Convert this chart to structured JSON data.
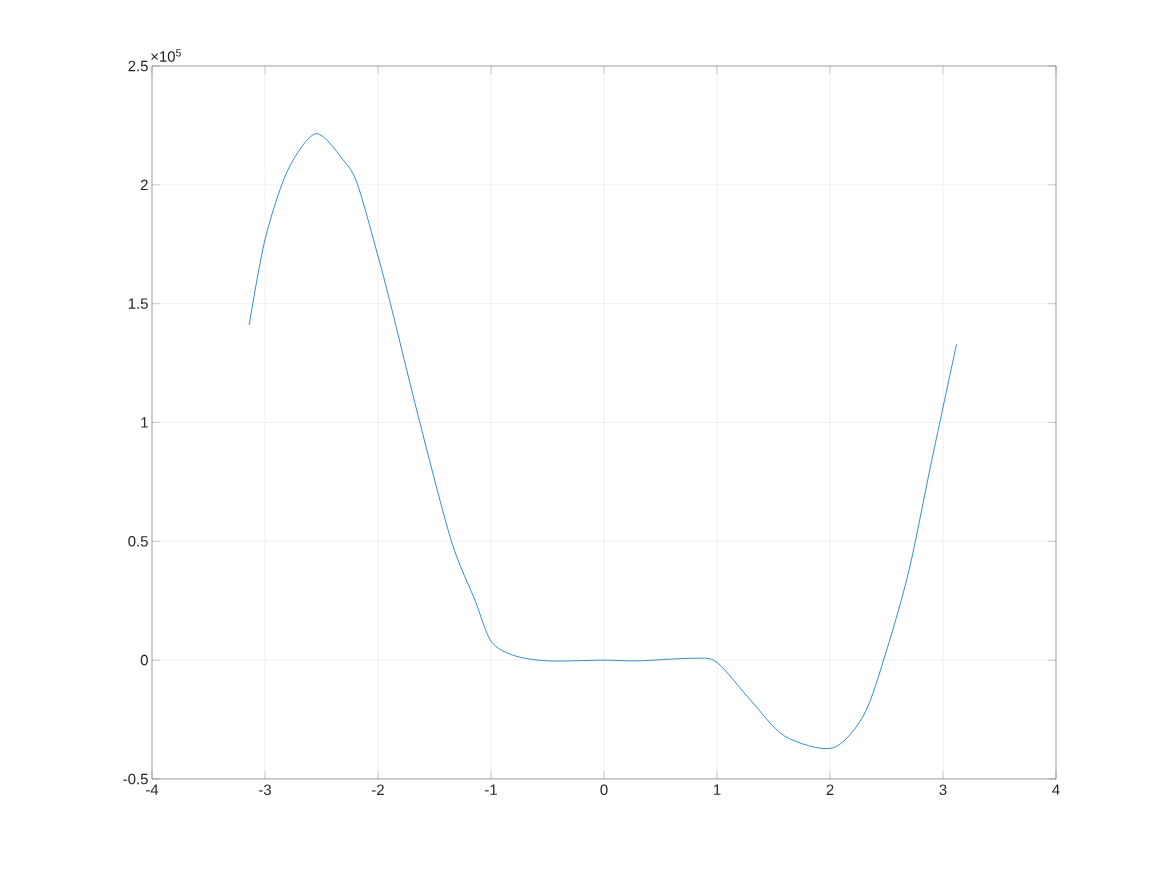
{
  "chart_data": {
    "type": "line",
    "x": [
      -3.14,
      -3.0,
      -2.8,
      -2.55,
      -2.3,
      -2.18,
      -2.0,
      -1.89,
      -1.63,
      -1.35,
      -1.14,
      -1.0,
      -0.8,
      -0.5,
      0.0,
      0.3,
      0.8,
      1.0,
      1.3,
      1.6,
      2.02,
      2.3,
      2.5,
      2.7,
      2.9,
      3.12
    ],
    "series": [
      {
        "color": "#0072bd",
        "values": [
          1.41,
          1.77,
          2.06,
          2.215,
          2.1,
          2.0,
          1.7,
          1.5,
          1.0,
          0.5,
          0.25,
          0.08,
          0.02,
          -0.003,
          0,
          -0.003,
          0.008,
          -0.01,
          -0.17,
          -0.32,
          -0.37,
          -0.23,
          0.04,
          0.38,
          0.84,
          1.33
        ]
      }
    ],
    "xlim": [
      -4,
      4
    ],
    "xticks": [
      -4,
      -3,
      -2,
      -1,
      0,
      1,
      2,
      3,
      4
    ],
    "ylim": [
      -0.5,
      2.5
    ],
    "yticks": [
      -0.5,
      0,
      0.5,
      1,
      1.5,
      2,
      2.5
    ],
    "grid": true,
    "annotations": [
      "×10$^{5}$"
    ]
  }
}
